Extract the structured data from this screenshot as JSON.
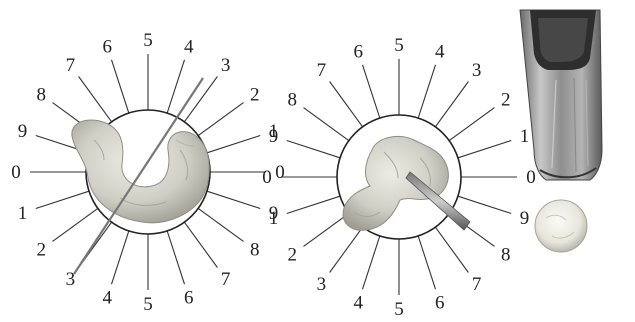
{
  "panels": [
    {
      "id": "left-dial",
      "labels": [
        "6",
        "5",
        "4",
        "3",
        "2",
        "1",
        "0",
        "9",
        "8",
        "7",
        "6",
        "5",
        "4",
        "3",
        "2",
        "1",
        "0",
        "9",
        "8",
        "7"
      ]
    },
    {
      "id": "middle-dial",
      "labels": [
        "6",
        "5",
        "4",
        "3",
        "2",
        "1",
        "0",
        "9",
        "8",
        "7",
        "6",
        "5",
        "4",
        "3",
        "2",
        "1",
        "0",
        "9",
        "8",
        "7"
      ]
    }
  ],
  "colors": {
    "specimen": "#d2d2c8",
    "specimen_shadow": "#9c9c92",
    "metal_dark": "#3a3a3a",
    "metal_light": "#a8a8a8",
    "line": "#333333"
  }
}
